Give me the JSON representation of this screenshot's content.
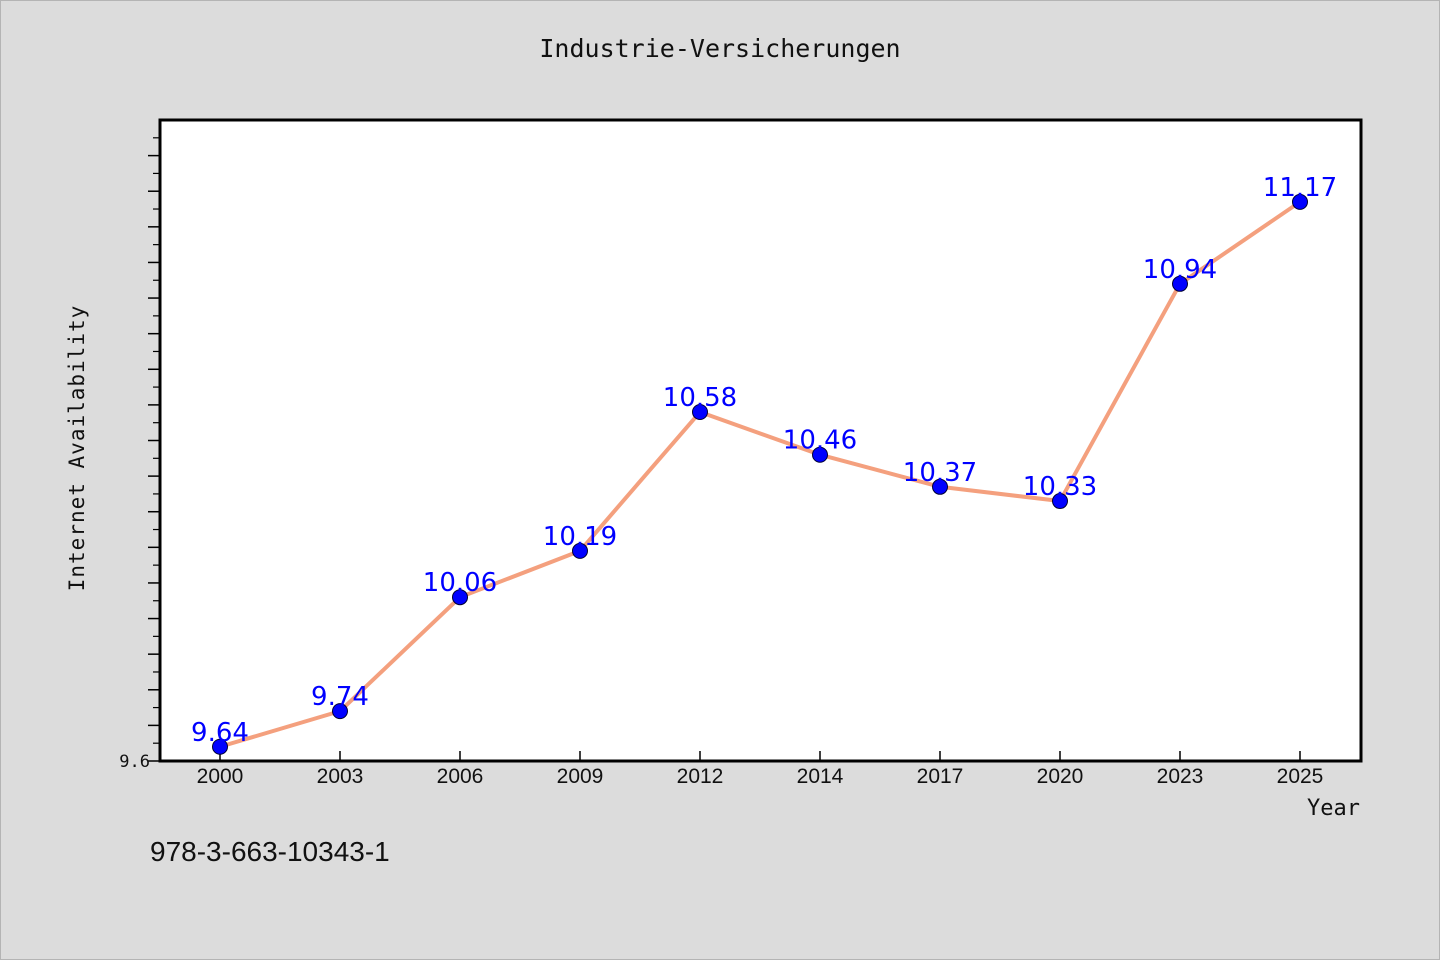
{
  "chart_data": {
    "type": "line",
    "title": "Industrie-Versicherungen",
    "xlabel": "Year",
    "ylabel": "Internet Availability",
    "categories": [
      "2000",
      "2003",
      "2006",
      "2009",
      "2012",
      "2014",
      "2017",
      "2020",
      "2023",
      "2025"
    ],
    "series": [
      {
        "values": [
          9.64,
          9.74,
          10.06,
          10.19,
          10.58,
          10.46,
          10.37,
          10.33,
          10.94,
          11.17
        ],
        "line_color": "#f4a07e",
        "marker_color": "#0000ff"
      }
    ],
    "data_labels": [
      "9.64",
      "9.74",
      "10.06",
      "10.19",
      "10.58",
      "10.46",
      "10.37",
      "10.33",
      "10.94",
      "11.17"
    ],
    "yticks": [
      9.6
    ],
    "ytick_labels": [
      "9.6"
    ],
    "ylim": [
      9.6,
      11.4
    ],
    "ymajor_step": 0.1,
    "grid": false,
    "legend": "none",
    "background_color": "#dcdcdc",
    "plot_background_color": "#ffffff"
  },
  "footer": {
    "isbn": "978-3-663-10343-1"
  }
}
